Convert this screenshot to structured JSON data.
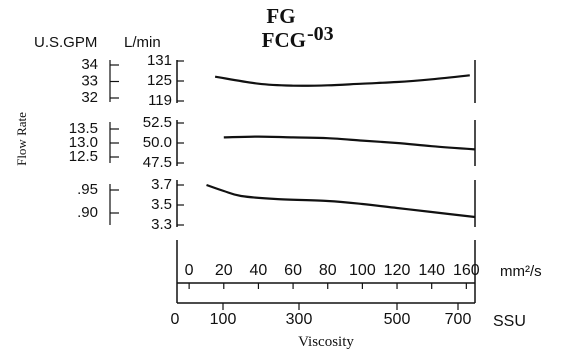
{
  "chart_data": {
    "type": "line",
    "title_line1": "FG",
    "title_line2": "FCG",
    "title_suffix": "-03",
    "unit_left": "U.S.GPM",
    "unit_right": "L/min",
    "ylabel": "Flow Rate",
    "xlabel": "Viscosity",
    "x_unit_top": "mm²/s",
    "x_unit_bottom": "SSU",
    "x_top": {
      "range": [
        -7,
        165
      ],
      "ticks": [
        0,
        20,
        40,
        60,
        80,
        100,
        120,
        140,
        160
      ],
      "labels": [
        "0",
        "20",
        "40",
        "60",
        "80",
        "100",
        "120",
        "140",
        "160"
      ]
    },
    "x_bottom": {
      "ticks": [
        0,
        100,
        300,
        500,
        700
      ],
      "labels": [
        "0",
        "100",
        "300",
        "500",
        "700"
      ]
    },
    "panels": [
      {
        "ylim": [
          119,
          131
        ],
        "right_ticks": [
          131,
          125,
          119
        ],
        "right_labels": [
          "131",
          "125",
          "119"
        ],
        "left_ticks": [
          34,
          33,
          32
        ],
        "left_labels": [
          "34",
          "33",
          "32"
        ],
        "points": [
          [
            15,
            126.3
          ],
          [
            40,
            124.2
          ],
          [
            60,
            123.6
          ],
          [
            80,
            123.7
          ],
          [
            100,
            124.2
          ],
          [
            120,
            124.7
          ],
          [
            140,
            125.5
          ],
          [
            162,
            126.7
          ]
        ]
      },
      {
        "ylim": [
          47.5,
          52.5
        ],
        "right_ticks": [
          52.5,
          50.0,
          47.5
        ],
        "right_labels": [
          "52.5",
          "50.0",
          "47.5"
        ],
        "left_ticks": [
          13.5,
          13.0,
          12.5
        ],
        "left_labels": [
          "13.5",
          "13.0",
          "12.5"
        ],
        "points": [
          [
            20,
            50.7
          ],
          [
            40,
            50.8
          ],
          [
            60,
            50.7
          ],
          [
            80,
            50.6
          ],
          [
            100,
            50.3
          ],
          [
            120,
            50.0
          ],
          [
            140,
            49.6
          ],
          [
            165,
            49.2
          ]
        ]
      },
      {
        "ylim": [
          3.3,
          3.7
        ],
        "right_ticks": [
          3.7,
          3.5,
          3.3
        ],
        "right_labels": [
          "3.7",
          "3.5",
          "3.3"
        ],
        "left_ticks": [
          0.95,
          0.9
        ],
        "left_labels": [
          ".95",
          ".90"
        ],
        "points": [
          [
            10,
            3.7
          ],
          [
            20,
            3.64
          ],
          [
            30,
            3.59
          ],
          [
            50,
            3.56
          ],
          [
            80,
            3.54
          ],
          [
            100,
            3.51
          ],
          [
            120,
            3.47
          ],
          [
            140,
            3.43
          ],
          [
            165,
            3.38
          ]
        ]
      }
    ]
  }
}
